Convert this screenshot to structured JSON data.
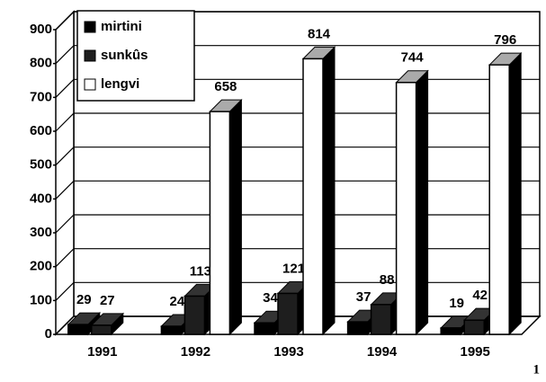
{
  "chart_data": {
    "type": "bar3d",
    "categories": [
      "1991",
      "1992",
      "1993",
      "1994",
      "1995"
    ],
    "series": [
      {
        "name": "mirtini",
        "color": "#000000",
        "values": [
          29,
          24,
          34,
          37,
          19
        ]
      },
      {
        "name": "sunkûs",
        "color": "#1e1e1e",
        "values": [
          27,
          113,
          121,
          88,
          42
        ]
      },
      {
        "name": "lengvi",
        "color": "#ffffff",
        "values": [
          null,
          658,
          814,
          744,
          796
        ]
      }
    ],
    "ylim": [
      0,
      900
    ],
    "yticks": [
      0,
      100,
      200,
      300,
      400,
      500,
      600,
      700,
      800,
      900
    ],
    "grid": true,
    "legend": "top-left",
    "page_mark": "1"
  }
}
